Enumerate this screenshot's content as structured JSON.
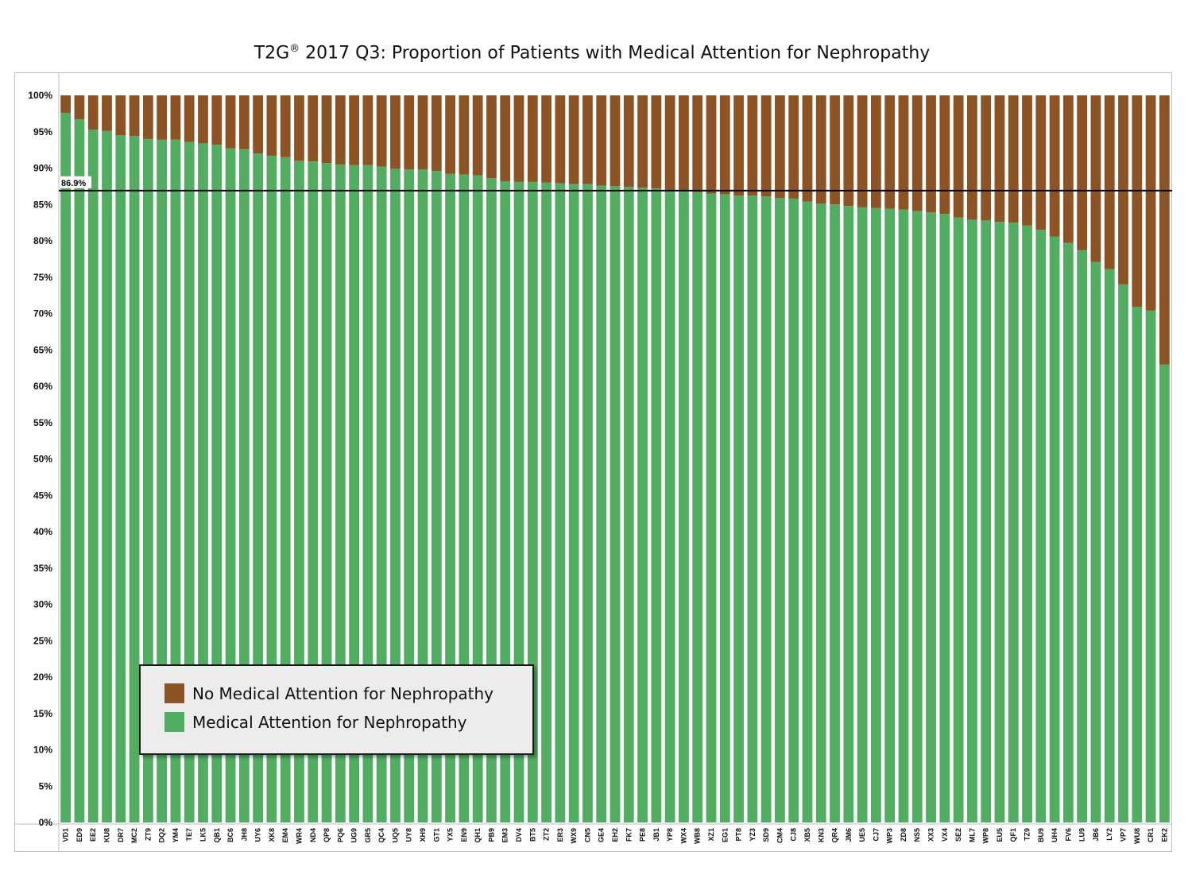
{
  "title": {
    "main": "T2G",
    "sup": "®",
    "rest": " 2017 Q3: Proportion of Patients with Medical Attention for Nephropathy"
  },
  "colors": {
    "attention": "#52ad62",
    "no_attention": "#8c5424",
    "reference_line": "#000000"
  },
  "legend": {
    "no_attention_label": "No Medical Attention for Nephropathy",
    "attention_label": "Medical Attention for Nephropathy",
    "placement": "lower-left"
  },
  "chart_data": {
    "type": "bar",
    "stacked": true,
    "title": "T2G® 2017 Q3: Proportion of Patients with Medical Attention for Nephropathy",
    "xlabel": "",
    "ylabel": "",
    "ylim": [
      0,
      100
    ],
    "yticks": [
      "0%",
      "5%",
      "10%",
      "15%",
      "20%",
      "25%",
      "30%",
      "35%",
      "40%",
      "45%",
      "50%",
      "55%",
      "60%",
      "65%",
      "70%",
      "75%",
      "80%",
      "85%",
      "90%",
      "95%",
      "100%"
    ],
    "reference_line": {
      "value": 86.9,
      "label": "86.9%"
    },
    "categories": [
      "VD1",
      "ED9",
      "EE2",
      "KU8",
      "DR7",
      "MC2",
      "ZT9",
      "DQ2",
      "YM4",
      "TE7",
      "LK5",
      "QB1",
      "BC6",
      "JH8",
      "UY6",
      "XK8",
      "EM4",
      "WR4",
      "ND4",
      "QP8",
      "PQ6",
      "UG9",
      "GR5",
      "QC4",
      "UQ5",
      "UY8",
      "XH9",
      "GT1",
      "YX5",
      "EN9",
      "QH1",
      "PB9",
      "EM3",
      "DV4",
      "BT5",
      "ZT2",
      "ER3",
      "WX9",
      "CN5",
      "GE4",
      "EH2",
      "FK7",
      "PE8",
      "JB1",
      "YP8",
      "WX4",
      "WB8",
      "XZ1",
      "EG1",
      "PT8",
      "YZ3",
      "SD9",
      "CM4",
      "CJ8",
      "XB5",
      "KN3",
      "QR4",
      "JM6",
      "UE5",
      "CJ7",
      "WP3",
      "ZD8",
      "NS5",
      "XX3",
      "VX4",
      "SE2",
      "ML7",
      "WP8",
      "EU5",
      "QF1",
      "TZ9",
      "BU9",
      "UH4",
      "FV6",
      "LU9",
      "JB6",
      "LY2",
      "VP7",
      "WU8",
      "CR1",
      "EK2"
    ],
    "series": [
      {
        "name": "Medical Attention for Nephropathy",
        "values": [
          97.6,
          96.7,
          95.3,
          95.1,
          94.5,
          94.4,
          94.0,
          93.9,
          93.9,
          93.6,
          93.4,
          93.2,
          92.7,
          92.6,
          92.0,
          91.7,
          91.5,
          91.0,
          90.9,
          90.7,
          90.5,
          90.4,
          90.4,
          90.2,
          89.9,
          89.8,
          89.8,
          89.6,
          89.2,
          89.1,
          89.0,
          88.6,
          88.2,
          88.1,
          88.1,
          88.0,
          87.9,
          87.8,
          87.8,
          87.6,
          87.5,
          87.4,
          87.3,
          87.2,
          86.9,
          86.8,
          86.7,
          86.5,
          86.4,
          86.2,
          86.2,
          86.1,
          85.9,
          85.8,
          85.4,
          85.1,
          85.0,
          84.8,
          84.6,
          84.5,
          84.4,
          84.3,
          84.1,
          83.9,
          83.7,
          83.2,
          82.9,
          82.8,
          82.6,
          82.5,
          82.1,
          81.5,
          80.6,
          79.7,
          78.7,
          77.1,
          76.1,
          74.0,
          70.9,
          70.4,
          63.0
        ]
      },
      {
        "name": "No Medical Attention for Nephropathy",
        "values": [
          2.4,
          3.3,
          4.7,
          4.9,
          5.5,
          5.6,
          6.0,
          6.1,
          6.1,
          6.4,
          6.6,
          6.8,
          7.3,
          7.4,
          8.0,
          8.3,
          8.5,
          9.0,
          9.1,
          9.3,
          9.5,
          9.6,
          9.6,
          9.8,
          10.1,
          10.2,
          10.2,
          10.4,
          10.8,
          10.9,
          11.0,
          11.4,
          11.8,
          11.9,
          11.9,
          12.0,
          12.1,
          12.2,
          12.2,
          12.4,
          12.5,
          12.6,
          12.7,
          12.8,
          13.1,
          13.2,
          13.3,
          13.5,
          13.6,
          13.8,
          13.8,
          13.9,
          14.1,
          14.2,
          14.6,
          14.9,
          15.0,
          15.2,
          15.4,
          15.5,
          15.6,
          15.7,
          15.9,
          16.1,
          16.3,
          16.8,
          17.1,
          17.2,
          17.4,
          17.5,
          17.9,
          18.5,
          19.4,
          20.3,
          21.3,
          22.9,
          23.9,
          26.0,
          29.1,
          29.6,
          37.0
        ]
      }
    ],
    "grid": false
  }
}
